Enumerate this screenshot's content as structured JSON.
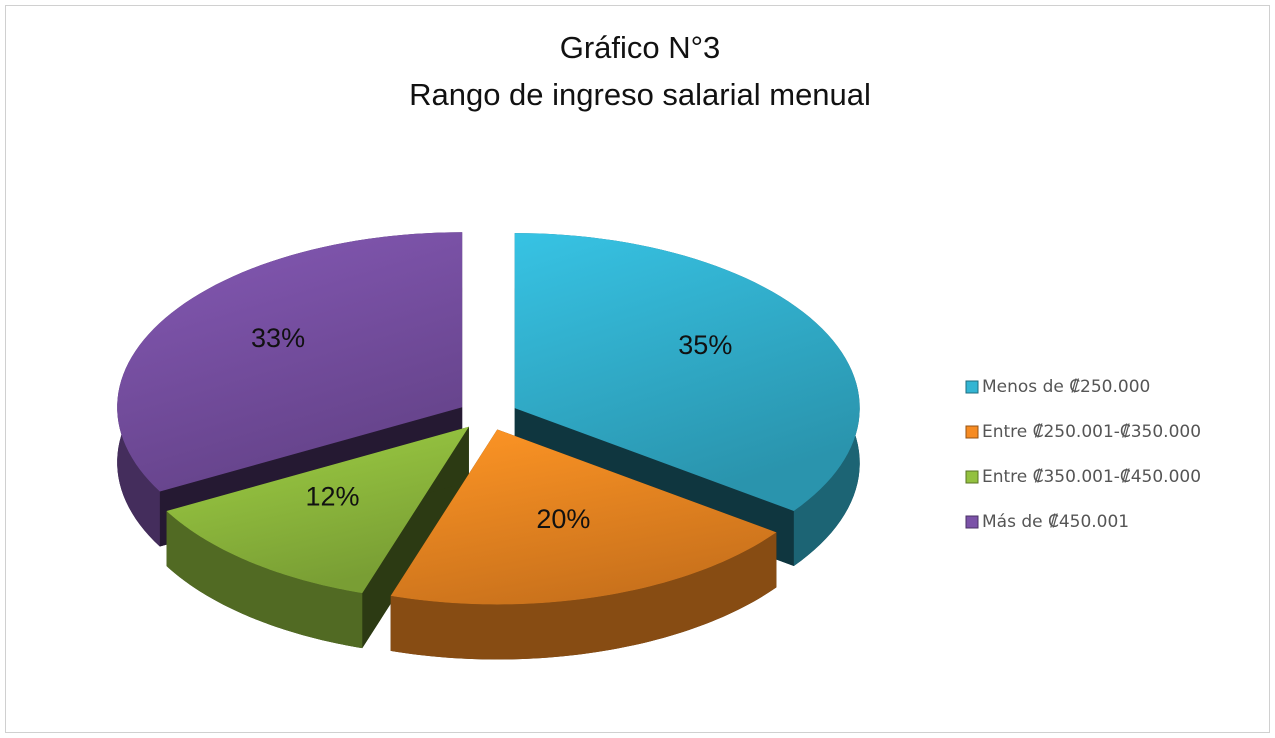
{
  "chart_data": {
    "type": "pie",
    "title": "Gráfico N°3",
    "subtitle": "Rango de ingreso salarial menual",
    "categories": [
      "Menos de ₡250.000",
      "Entre ₡250.001-₡350.000",
      "Entre ₡350.001-₡450.000",
      "Más de ₡450.001"
    ],
    "values": [
      35,
      20,
      12,
      33
    ],
    "value_labels": [
      "35%",
      "20%",
      "12%",
      "33%"
    ],
    "colors": [
      "#33b5d3",
      "#f68b22",
      "#93c13f",
      "#7b52a8"
    ],
    "legend": "right"
  }
}
